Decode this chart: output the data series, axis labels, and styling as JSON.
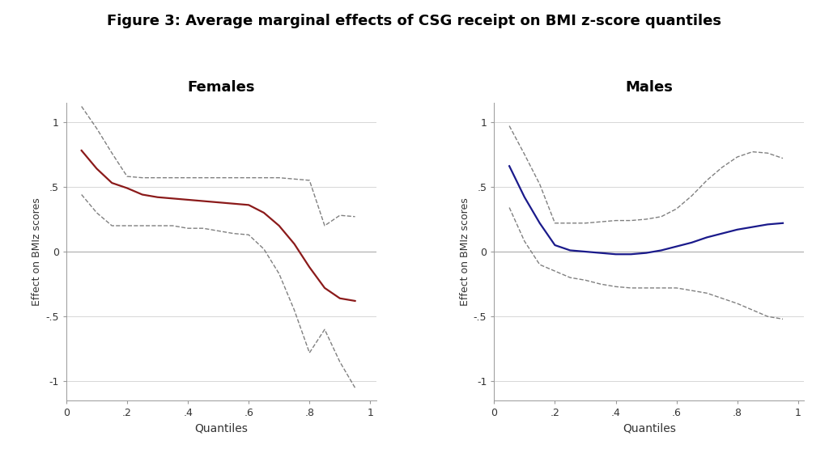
{
  "title": "Figure 3: Average marginal effects of CSG receipt on BMI z-score quantiles",
  "title_fontsize": 13,
  "title_fontweight": "bold",
  "left_subtitle": "Females",
  "right_subtitle": "Males",
  "subtitle_fontsize": 13,
  "subtitle_fontweight": "bold",
  "ylabel": "Effect on BMIz scores",
  "xlabel": "Quantiles",
  "ylim": [
    -1.15,
    1.15
  ],
  "xlim": [
    0,
    1.02
  ],
  "yticks": [
    -1,
    -0.5,
    0,
    0.5,
    1
  ],
  "ytick_labels": [
    "-1",
    "-.5",
    "0",
    ".5",
    "1"
  ],
  "xticks": [
    0,
    0.2,
    0.4,
    0.6,
    0.8,
    1.0
  ],
  "xtick_labels": [
    "0",
    ".2",
    ".4",
    ".6",
    ".8",
    "1"
  ],
  "female_main_color": "#8B1A1A",
  "male_main_color": "#1a1a8b",
  "ci_color": "#808080",
  "ci_linestyle": "--",
  "main_linewidth": 1.6,
  "ci_linewidth": 1.0,
  "background_color": "#ffffff",
  "grid_color": "#d0d0d0",
  "female_x": [
    0.05,
    0.1,
    0.15,
    0.2,
    0.25,
    0.3,
    0.35,
    0.4,
    0.45,
    0.5,
    0.55,
    0.6,
    0.65,
    0.7,
    0.75,
    0.8,
    0.85,
    0.9,
    0.95
  ],
  "female_y": [
    0.78,
    0.64,
    0.53,
    0.49,
    0.44,
    0.42,
    0.41,
    0.4,
    0.39,
    0.38,
    0.37,
    0.36,
    0.3,
    0.2,
    0.06,
    -0.12,
    -0.28,
    -0.36,
    -0.38
  ],
  "female_ci_upper": [
    1.12,
    0.95,
    0.76,
    0.58,
    0.57,
    0.57,
    0.57,
    0.57,
    0.57,
    0.57,
    0.57,
    0.57,
    0.57,
    0.57,
    0.56,
    0.55,
    0.2,
    0.28,
    0.27
  ],
  "female_ci_lower": [
    0.44,
    0.3,
    0.2,
    0.2,
    0.2,
    0.2,
    0.2,
    0.18,
    0.18,
    0.16,
    0.14,
    0.13,
    0.02,
    -0.17,
    -0.45,
    -0.78,
    -0.6,
    -0.85,
    -1.05
  ],
  "male_x": [
    0.05,
    0.1,
    0.15,
    0.2,
    0.25,
    0.3,
    0.35,
    0.4,
    0.45,
    0.5,
    0.55,
    0.6,
    0.65,
    0.7,
    0.75,
    0.8,
    0.85,
    0.9,
    0.95
  ],
  "male_y": [
    0.66,
    0.42,
    0.22,
    0.05,
    0.01,
    0.0,
    -0.01,
    -0.02,
    -0.02,
    -0.01,
    0.01,
    0.04,
    0.07,
    0.11,
    0.14,
    0.17,
    0.19,
    0.21,
    0.22
  ],
  "male_ci_upper": [
    0.97,
    0.75,
    0.52,
    0.22,
    0.22,
    0.22,
    0.23,
    0.24,
    0.24,
    0.25,
    0.27,
    0.33,
    0.43,
    0.55,
    0.65,
    0.73,
    0.77,
    0.76,
    0.72
  ],
  "male_ci_lower": [
    0.34,
    0.08,
    -0.1,
    -0.15,
    -0.2,
    -0.22,
    -0.25,
    -0.27,
    -0.28,
    -0.28,
    -0.28,
    -0.28,
    -0.3,
    -0.32,
    -0.36,
    -0.4,
    -0.45,
    -0.5,
    -0.52
  ]
}
